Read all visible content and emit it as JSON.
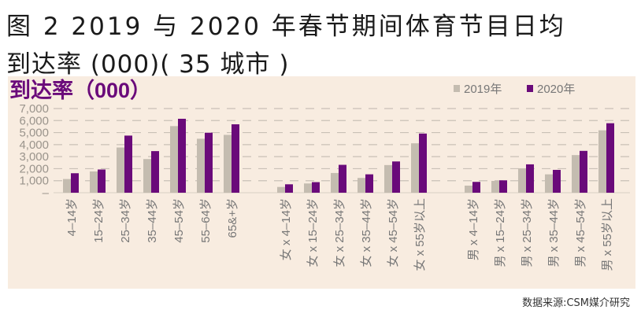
{
  "title_line1": "图 2 2019 与 2020 年春节期间体育节目日均",
  "title_line2": "到达率 (000)( 35 城市 )",
  "source": "数据来源:CSM媒介研究",
  "colors": {
    "2019": "#c4bcb0",
    "2020": "#6a0a7a",
    "panel": "#f8ece0"
  },
  "chart_data": {
    "type": "bar",
    "title": "到达率（000）",
    "ylim": [
      0,
      7000
    ],
    "yticks": [
      "–",
      "1,000",
      "2,000",
      "3,000",
      "4,000",
      "5,000",
      "6,000",
      "7,000"
    ],
    "grid": true,
    "legend_position": "top-right",
    "groups": [
      [
        "4–14岁",
        "15–24岁",
        "25–34岁",
        "35–44岁",
        "45–54岁",
        "55–64岁",
        "65&+岁"
      ],
      [
        "女 x 4–14岁",
        "女 x 15–24岁",
        "女 x 25–34岁",
        "女 x 35–44岁",
        "女 x 45–54岁",
        "女 x 55岁以上"
      ],
      [
        "男 x 4–14岁",
        "男 x 15–24岁",
        "男 x 25–34岁",
        "男 x 35–44岁",
        "男 x 45–54岁",
        "男 x 55岁以上"
      ]
    ],
    "categories": [
      "4–14岁",
      "15–24岁",
      "25–34岁",
      "35–44岁",
      "45–54岁",
      "55–64岁",
      "65&+岁",
      "女 x 4–14岁",
      "女 x 15–24岁",
      "女 x 25–34岁",
      "女 x 35–44岁",
      "女 x 45–54岁",
      "女 x 55岁以上",
      "男 x 4–14岁",
      "男 x 15–24岁",
      "男 x 25–34岁",
      "男 x 35–44岁",
      "男 x 45–54岁",
      "男 x 55岁以上"
    ],
    "series": [
      {
        "name": "2019年",
        "values": [
          1140,
          1770,
          3760,
          2800,
          5540,
          4490,
          4810,
          480,
          770,
          1640,
          1230,
          2300,
          4110,
          590,
          980,
          2030,
          1530,
          3130,
          5190
        ]
      },
      {
        "name": "2020年",
        "values": [
          1620,
          1930,
          4750,
          3460,
          6150,
          4990,
          5690,
          700,
          880,
          2320,
          1530,
          2600,
          4920,
          900,
          1030,
          2360,
          1900,
          3480,
          5780
        ]
      }
    ]
  }
}
